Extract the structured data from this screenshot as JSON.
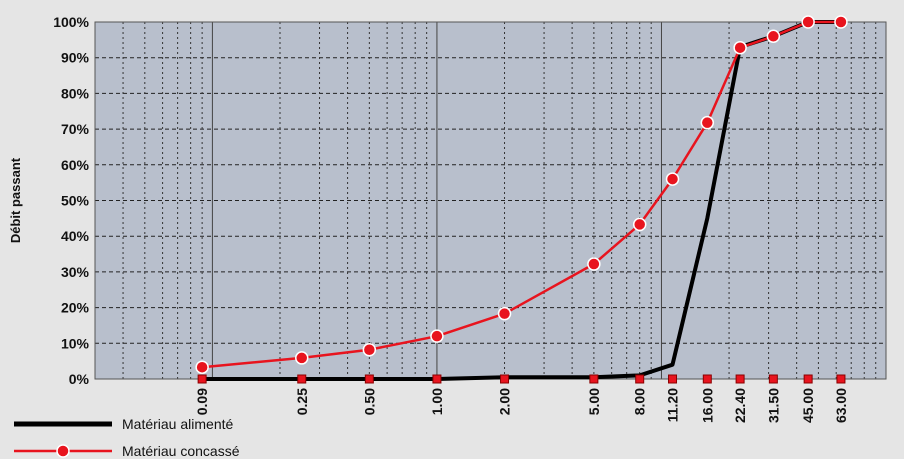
{
  "chart_data": {
    "type": "line",
    "ylabel": "Débit passant",
    "xlabel": "",
    "x_scale": "log",
    "xlim": [
      0.03,
      100
    ],
    "ylim": [
      0,
      100
    ],
    "y_ticks": [
      "0%",
      "10%",
      "20%",
      "30%",
      "40%",
      "50%",
      "60%",
      "70%",
      "80%",
      "90%",
      "100%"
    ],
    "x_tick_labels": [
      "0.09",
      "0.25",
      "0.50",
      "1.00",
      "2.00",
      "5.00",
      "8.00",
      "11.20",
      "16.00",
      "22.40",
      "31.50",
      "45.00",
      "63.00"
    ],
    "x": [
      0.09,
      0.25,
      0.5,
      1.0,
      2.0,
      5.0,
      8.0,
      11.2,
      16.0,
      22.4,
      31.5,
      45.0,
      63.0
    ],
    "grid": true,
    "legend_position": "bottom-left",
    "series": [
      {
        "name": "Matériau alimenté",
        "color": "#000000",
        "values": [
          0,
          0,
          0,
          0,
          0.5,
          0.5,
          1,
          4,
          45,
          93,
          96,
          100,
          100
        ],
        "marker": "square-red"
      },
      {
        "name": "Matériau concassé",
        "color": "#e8141e",
        "values": [
          3.3,
          5.9,
          8.2,
          12,
          18.3,
          32.2,
          43.3,
          56,
          71.8,
          92.8,
          96,
          100,
          100
        ],
        "marker": "circle"
      }
    ]
  }
}
